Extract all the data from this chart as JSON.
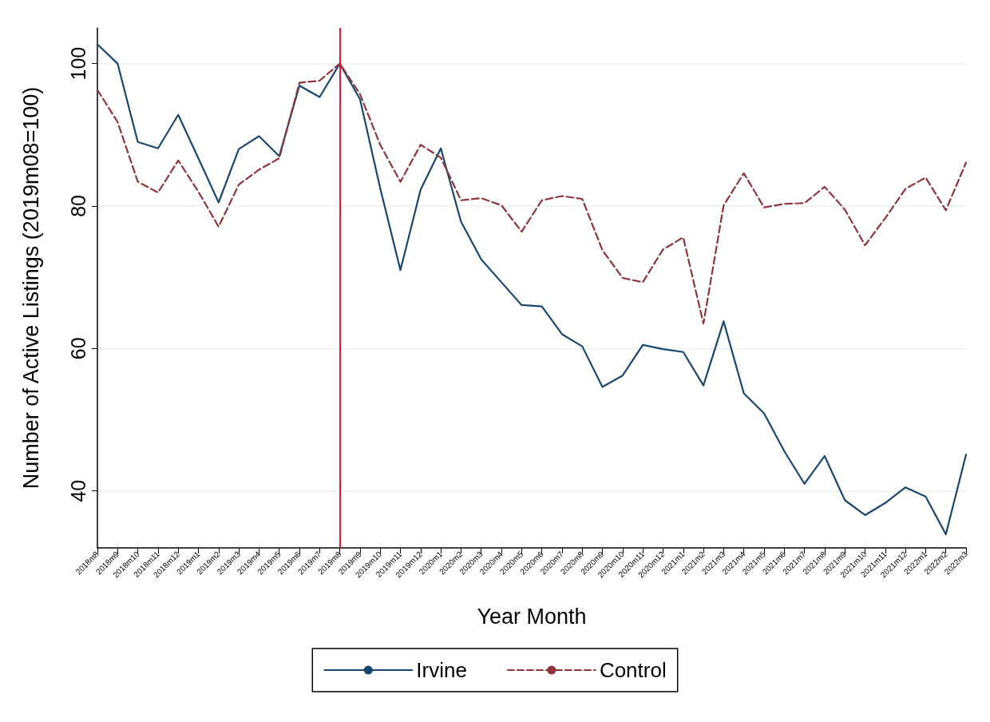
{
  "chart_data": {
    "type": "line",
    "xlabel": "Year Month",
    "ylabel": "Number of Active Listings (2019m08=100)",
    "categories": [
      "2018m8",
      "2018m9",
      "2018m10",
      "2018m11",
      "2018m12",
      "2019m1",
      "2019m2",
      "2019m3",
      "2019m4",
      "2019m5",
      "2019m6",
      "2019m7",
      "2019m8",
      "2019m9",
      "2019m10",
      "2019m11",
      "2019m12",
      "2020m1",
      "2020m2",
      "2020m3",
      "2020m4",
      "2020m5",
      "2020m6",
      "2020m7",
      "2020m8",
      "2020m9",
      "2020m10",
      "2020m11",
      "2020m12",
      "2021m1",
      "2021m2",
      "2021m3",
      "2021m4",
      "2021m5",
      "2021m6",
      "2021m7",
      "2021m8",
      "2021m9",
      "2021m10",
      "2021m11",
      "2021m12",
      "2022m1",
      "2022m2",
      "2022m3"
    ],
    "series": [
      {
        "name": "Irvine",
        "color": "#1a476f",
        "line_style": "solid",
        "values": [
          102.7,
          100,
          89,
          88.1,
          92.8,
          86.7,
          80.5,
          88,
          89.8,
          87,
          96.9,
          95.3,
          100,
          95,
          82.5,
          71,
          82.3,
          88.1,
          77.8,
          72.5,
          69.3,
          66.1,
          65.9,
          62,
          60.3,
          54.6,
          56.2,
          60.5,
          59.9,
          59.5,
          54.8,
          63.8,
          53.7,
          50.9,
          45.6,
          41,
          44.9,
          38.7,
          36.6,
          38.3,
          40.5,
          39.2,
          33.9,
          45.1
        ]
      },
      {
        "name": "Control",
        "color": "#90353b",
        "line_style": "dashed",
        "values": [
          96.3,
          91.8,
          83.4,
          81.9,
          86.4,
          82,
          77.1,
          83,
          85.1,
          86.7,
          97.3,
          97.6,
          100,
          95.7,
          88.6,
          83.4,
          88.6,
          86.8,
          80.8,
          81.1,
          80.1,
          76.4,
          80.8,
          81.4,
          81,
          73.8,
          69.9,
          69.3,
          73.9,
          75.6,
          63.5,
          80.1,
          84.6,
          79.8,
          80.3,
          80.4,
          82.7,
          79.5,
          74.5,
          78.3,
          82.4,
          84,
          79.4,
          86.1
        ]
      }
    ],
    "ylim": [
      32,
      105
    ],
    "yticks": [
      40,
      60,
      80,
      100
    ],
    "ref_lines": [
      {
        "axis": "x",
        "value": "2019m8",
        "color": "#e8133c",
        "line_style": "solid"
      }
    ],
    "grid": "y",
    "legend": "bottom",
    "marker": "none"
  }
}
